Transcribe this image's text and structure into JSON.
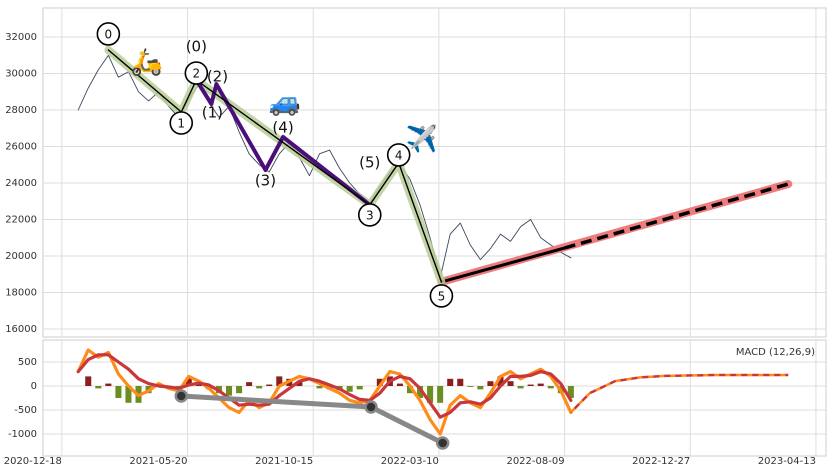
{
  "chart_data": [
    {
      "type": "line",
      "xlim": [
        -15,
        608
      ],
      "ylim": [
        15560,
        33590
      ],
      "yticks": [
        16000,
        18000,
        20000,
        22000,
        24000,
        26000,
        28000,
        30000,
        32000
      ],
      "grid": true,
      "x": [
        13,
        21,
        29,
        37,
        45,
        53,
        61,
        69,
        77,
        85,
        93,
        101,
        109,
        117,
        125,
        133,
        141,
        149,
        157,
        165,
        173,
        181,
        189,
        197,
        205,
        213,
        221,
        229,
        237,
        245,
        253,
        261,
        269,
        277,
        285,
        293,
        301,
        309,
        317,
        325,
        333,
        341,
        349,
        357,
        365,
        373,
        381,
        389,
        397,
        405
      ],
      "series": [
        {
          "color": "#3d4660",
          "values": [
            28000,
            29200,
            30200,
            31000,
            29800,
            30100,
            29000,
            28500,
            29000,
            28200,
            27600,
            28600,
            29400,
            28400,
            27600,
            28200,
            26800,
            25600,
            25000,
            24600,
            25600,
            26200,
            25400,
            24400,
            25600,
            25800,
            24800,
            24000,
            23400,
            22900,
            23800,
            24600,
            25000,
            24200,
            22800,
            21000,
            18800,
            21200,
            21800,
            20600,
            19800,
            20400,
            21200,
            20800,
            21600,
            22000,
            21000,
            20600,
            20200,
            19900
          ]
        }
      ],
      "wave": {
        "x": [
          37,
          95,
          107,
          245,
          268,
          302
        ],
        "values": [
          31290,
          27890,
          29640,
          22800,
          25100,
          18580
        ],
        "labels": [
          "0",
          "1",
          "2",
          "3",
          "4",
          "5"
        ],
        "color": "#b9cc97"
      },
      "subwave": {
        "x": [
          107,
          119,
          123,
          162,
          176,
          245
        ],
        "values": [
          29640,
          28330,
          29420,
          24710,
          26520,
          22800
        ],
        "labels": [
          "(0)",
          "(1)",
          "(2)",
          "(3)",
          "(4)",
          "(5)"
        ],
        "color": "#4b0f7a"
      },
      "trend": {
        "x": [
          302,
          578
        ],
        "values": [
          18580,
          23945
        ],
        "color": "#ee7c7c"
      },
      "fit": {
        "x": [
          302,
          400
        ],
        "values": [
          18580,
          20440
        ]
      },
      "projection": {
        "x": [
          400,
          578
        ],
        "values": [
          20440,
          23945
        ]
      },
      "annotations": [
        "🛵",
        "🚙",
        "✈️"
      ]
    },
    {
      "type": "line",
      "title": "MACD (12,26,9)",
      "xlim": [
        -15,
        608
      ],
      "ylim": [
        -1458,
        958
      ],
      "yticks": [
        -1000,
        -500,
        0,
        500
      ],
      "xticks": [
        {
          "value": 0,
          "label": "2020-12-18"
        },
        {
          "value": 100,
          "label": "2021-05-20"
        },
        {
          "value": 200,
          "label": "2021-10-15"
        },
        {
          "value": 300,
          "label": "2022-03-10"
        },
        {
          "value": 400,
          "label": "2022-08-09"
        },
        {
          "value": 500,
          "label": "2022-12-27"
        },
        {
          "value": 600,
          "label": "2023-04-13"
        }
      ],
      "grid": true,
      "x": [
        13,
        21,
        29,
        37,
        45,
        53,
        61,
        69,
        77,
        85,
        93,
        101,
        109,
        117,
        125,
        133,
        141,
        149,
        157,
        165,
        173,
        181,
        189,
        197,
        205,
        213,
        221,
        229,
        237,
        245,
        253,
        261,
        269,
        277,
        285,
        293,
        301,
        309,
        317,
        325,
        333,
        341,
        349,
        357,
        365,
        373,
        381,
        389,
        397,
        405
      ],
      "histogram": {
        "up_color": "#8b1e1e",
        "down_color": "#6b8e23",
        "values": [
          0,
          200,
          -50,
          50,
          -250,
          -350,
          -350,
          -150,
          50,
          -30,
          -50,
          180,
          40,
          -70,
          -150,
          -200,
          -150,
          80,
          -50,
          30,
          200,
          150,
          100,
          0,
          -50,
          -70,
          -90,
          -120,
          -70,
          0,
          150,
          200,
          50,
          -150,
          -250,
          -350,
          -350,
          150,
          150,
          -20,
          -70,
          100,
          200,
          100,
          -50,
          30,
          50,
          -50,
          -150,
          -250
        ]
      },
      "series": [
        {
          "color": "#ff8c1a",
          "values": [
            300,
            750,
            600,
            700,
            250,
            0,
            -200,
            -100,
            50,
            -50,
            -100,
            200,
            100,
            -50,
            -250,
            -450,
            -550,
            -300,
            -450,
            -350,
            0,
            100,
            200,
            150,
            50,
            -50,
            -150,
            -300,
            -350,
            -300,
            0,
            300,
            250,
            0,
            -300,
            -700,
            -1000,
            -400,
            -200,
            -350,
            -450,
            -150,
            200,
            300,
            150,
            250,
            350,
            200,
            -100,
            -550
          ]
        },
        {
          "color": "#c8373a",
          "values": [
            300,
            550,
            650,
            650,
            500,
            350,
            150,
            50,
            0,
            -20,
            -50,
            20,
            60,
            20,
            -100,
            -250,
            -400,
            -380,
            -400,
            -380,
            -200,
            -50,
            100,
            150,
            100,
            20,
            -60,
            -180,
            -280,
            -300,
            -150,
            100,
            200,
            150,
            -50,
            -350,
            -650,
            -550,
            -350,
            -330,
            -380,
            -250,
            0,
            200,
            200,
            220,
            300,
            250,
            50,
            -300
          ]
        }
      ],
      "forecast": {
        "x": [
          405,
          420,
          440,
          460,
          480,
          520,
          578
        ],
        "values": [
          -550,
          -150,
          100,
          180,
          210,
          230,
          230
        ],
        "color": "#ff8c1a"
      },
      "swing": {
        "x": [
          95,
          246,
          303
        ],
        "values": [
          -208,
          -437,
          -1188
        ],
        "color": "#888888"
      }
    }
  ]
}
